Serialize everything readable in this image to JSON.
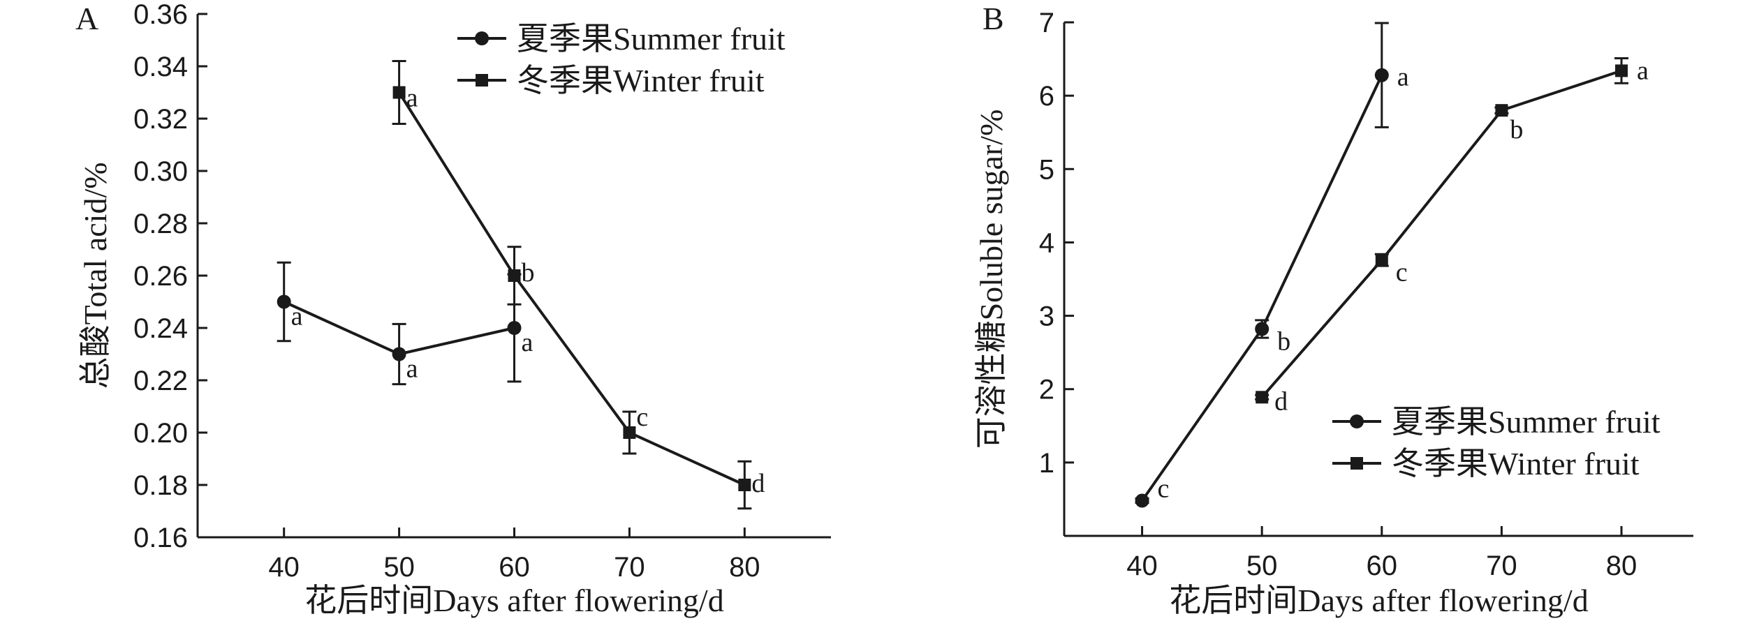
{
  "chart_data": [
    {
      "panel": "A",
      "type": "line",
      "xlabel": "花后时间Days after flowering/d",
      "ylabel": "总酸Total acid/%",
      "ylim": [
        0.16,
        0.36
      ],
      "y_ticks": [
        "0.16",
        "0.18",
        "0.20",
        "0.22",
        "0.24",
        "0.26",
        "0.28",
        "0.30",
        "0.32",
        "0.34",
        "0.36"
      ],
      "xlim": [
        32.5,
        87.5
      ],
      "x_ticks": [
        "40",
        "50",
        "60",
        "70",
        "80"
      ],
      "legend_position": "top-right",
      "grid": false,
      "series": [
        {
          "name": "夏季果Summer fruit",
          "marker": "circle",
          "x": [
            40,
            50,
            60
          ],
          "y": [
            0.25,
            0.23,
            0.24
          ],
          "error": [
            0.015,
            0.0115,
            0.0205
          ],
          "labels": [
            "a",
            "a",
            "a"
          ]
        },
        {
          "name": "冬季果Winter fruit",
          "marker": "square",
          "x": [
            50,
            60,
            70,
            80
          ],
          "y": [
            0.33,
            0.26,
            0.2,
            0.18
          ],
          "error": [
            0.012,
            0.011,
            0.008,
            0.009
          ],
          "labels": [
            "a",
            "b",
            "c",
            "d"
          ]
        }
      ]
    },
    {
      "panel": "B",
      "type": "line",
      "xlabel": "花后时间Days after flowering/d",
      "ylabel": "可溶性糖Soluble sugar/%",
      "ylim": [
        0,
        7
      ],
      "y_ticks": [
        "1",
        "2",
        "3",
        "4",
        "5",
        "6",
        "7"
      ],
      "xlim": [
        33.5,
        86
      ],
      "x_ticks": [
        "40",
        "50",
        "60",
        "70",
        "80"
      ],
      "legend_position": "bottom-right",
      "grid": false,
      "series": [
        {
          "name": "夏季果Summer fruit",
          "marker": "circle",
          "x": [
            40,
            50,
            60
          ],
          "y": [
            0.48,
            2.82,
            6.28
          ],
          "error": [
            0.03,
            0.12,
            0.71
          ],
          "labels": [
            "c",
            "b",
            "a"
          ]
        },
        {
          "name": "冬季果Winter fruit",
          "marker": "square",
          "x": [
            50,
            60,
            70,
            80
          ],
          "y": [
            1.89,
            3.76,
            5.8,
            6.34
          ],
          "error": [
            0.03,
            0.08,
            0.04,
            0.17
          ],
          "labels": [
            "d",
            "c",
            "b",
            "a"
          ]
        }
      ]
    }
  ]
}
